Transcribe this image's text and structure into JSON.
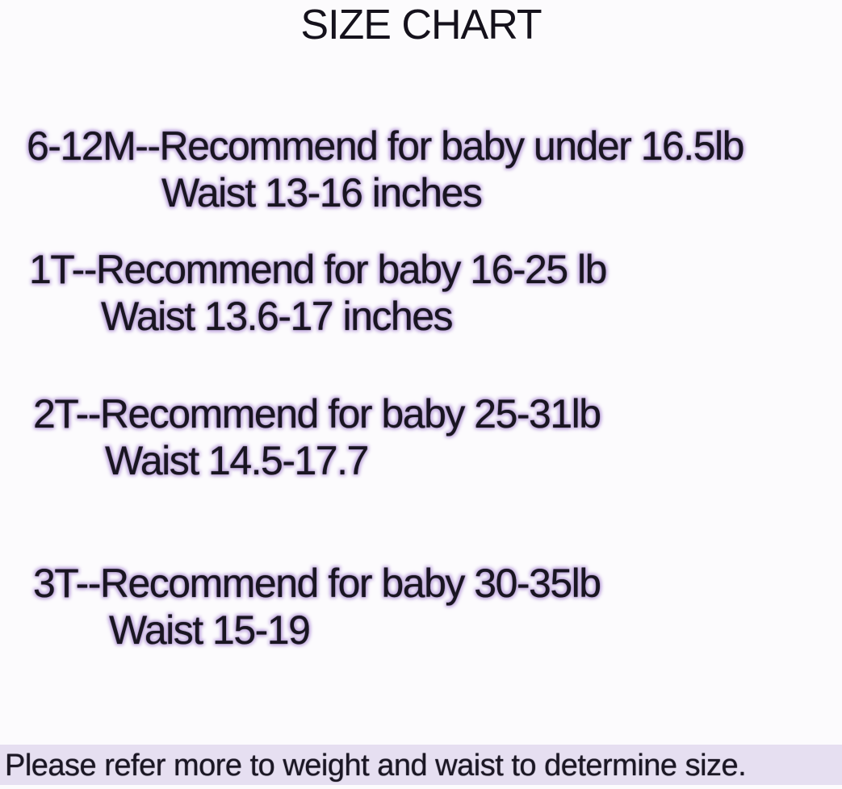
{
  "title": "SIZE CHART",
  "entries": [
    {
      "size": "6-12M",
      "recommendation": "6-12M--Recommend for baby under 16.5lb",
      "waist": "Waist 13-16 inches"
    },
    {
      "size": "1T",
      "recommendation": "1T--Recommend for baby 16-25 lb",
      "waist": "Waist 13.6-17 inches"
    },
    {
      "size": "2T",
      "recommendation": "2T--Recommend for baby 25-31lb",
      "waist": "Waist 14.5-17.7"
    },
    {
      "size": "3T",
      "recommendation": "3T--Recommend for baby 30-35lb",
      "waist": "Waist 15-19"
    }
  ],
  "footer_note": "Please refer more to weight and waist to determine size.",
  "colors": {
    "text": "#191521",
    "halo": "#d7c7e8",
    "footer_bg": "#e6dff1",
    "page_bg": "#fcfbfd"
  }
}
